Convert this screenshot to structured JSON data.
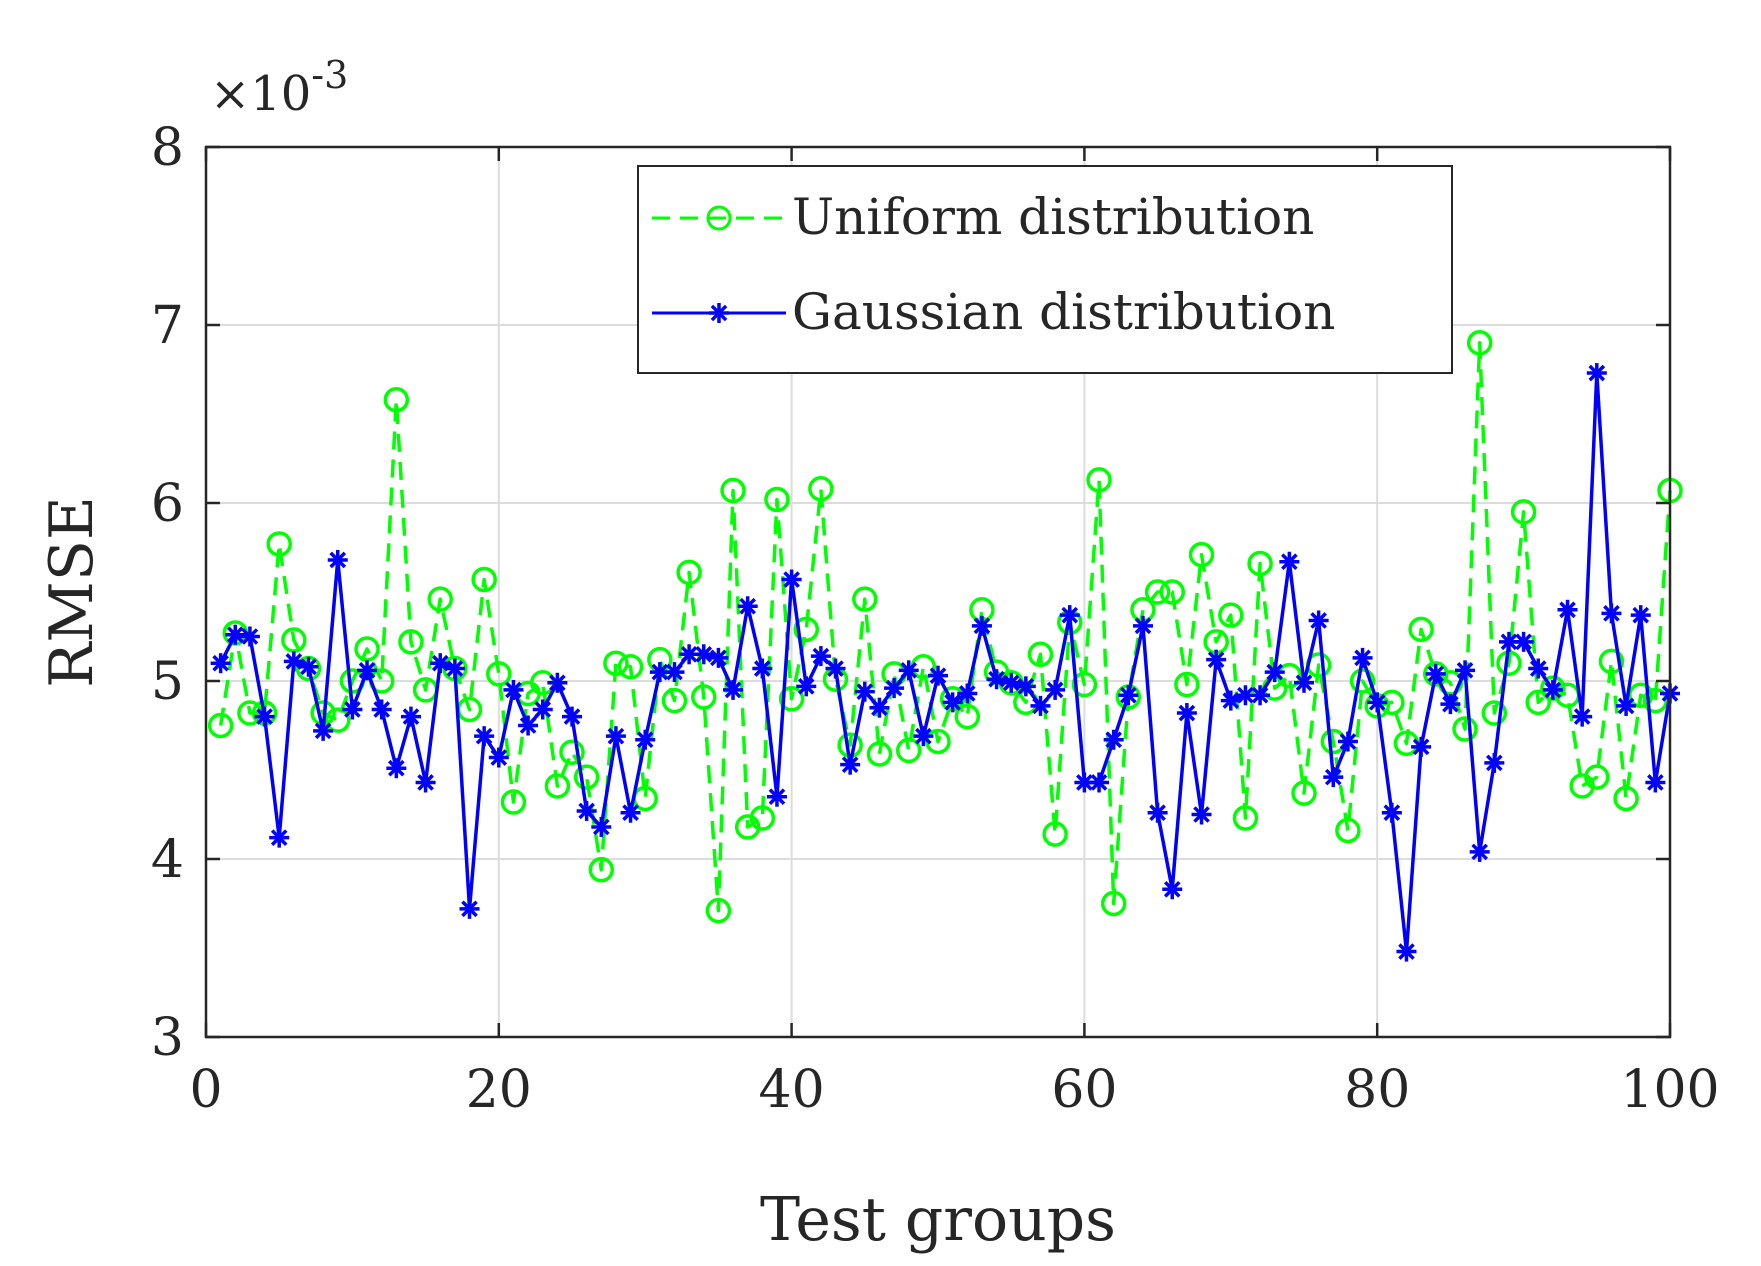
{
  "chart_data": {
    "type": "line",
    "title": "",
    "xlabel": "Test groups",
    "ylabel": "RMSE",
    "xlim": [
      0,
      100
    ],
    "ylim": [
      3,
      8
    ],
    "x_ticks": [
      0,
      20,
      40,
      60,
      80,
      100
    ],
    "y_ticks": [
      3,
      4,
      5,
      6,
      7,
      8
    ],
    "y_exponent_label": "×10",
    "y_exponent_power": "-3",
    "grid": true,
    "legend_position": "top-right",
    "x": [
      1,
      2,
      3,
      4,
      5,
      6,
      7,
      8,
      9,
      10,
      11,
      12,
      13,
      14,
      15,
      16,
      17,
      18,
      19,
      20,
      21,
      22,
      23,
      24,
      25,
      26,
      27,
      28,
      29,
      30,
      31,
      32,
      33,
      34,
      35,
      36,
      37,
      38,
      39,
      40,
      41,
      42,
      43,
      44,
      45,
      46,
      47,
      48,
      49,
      50,
      51,
      52,
      53,
      54,
      55,
      56,
      57,
      58,
      59,
      60,
      61,
      62,
      63,
      64,
      65,
      66,
      67,
      68,
      69,
      70,
      71,
      72,
      73,
      74,
      75,
      76,
      77,
      78,
      79,
      80,
      81,
      82,
      83,
      84,
      85,
      86,
      87,
      88,
      89,
      90,
      91,
      92,
      93,
      94,
      95,
      96,
      97,
      98,
      99,
      100
    ],
    "series": [
      {
        "name": "Uniform distribution",
        "color": "#00ff00",
        "line_style": "dashed",
        "marker": "circle",
        "values": [
          4.75,
          5.27,
          4.82,
          4.82,
          5.77,
          5.23,
          5.07,
          4.82,
          4.78,
          5.0,
          5.18,
          5.0,
          6.58,
          5.22,
          4.95,
          5.46,
          5.07,
          4.84,
          5.57,
          5.04,
          4.32,
          4.93,
          4.99,
          4.41,
          4.6,
          4.46,
          3.94,
          5.1,
          5.08,
          4.34,
          5.12,
          4.89,
          5.61,
          4.91,
          3.71,
          6.07,
          4.18,
          4.23,
          6.02,
          4.9,
          5.29,
          6.08,
          5.01,
          4.64,
          5.46,
          4.59,
          5.04,
          4.61,
          5.08,
          4.66,
          4.9,
          4.8,
          5.4,
          5.05,
          4.99,
          4.88,
          5.15,
          4.14,
          5.33,
          4.98,
          6.13,
          3.75,
          4.91,
          5.4,
          5.5,
          5.5,
          4.98,
          5.71,
          5.22,
          5.37,
          4.23,
          5.66,
          4.96,
          5.03,
          4.37,
          5.09,
          4.66,
          4.16,
          5.0,
          4.86,
          4.88,
          4.65,
          5.29,
          5.04,
          4.99,
          4.73,
          6.9,
          4.82,
          5.1,
          5.95,
          4.88,
          4.96,
          4.92,
          4.41,
          4.46,
          5.11,
          4.34,
          4.92,
          4.89,
          6.07
        ]
      },
      {
        "name": "Gaussian distribution",
        "color": "#0000ff",
        "line_style": "solid",
        "marker": "asterisk",
        "values": [
          5.1,
          5.26,
          5.25,
          4.8,
          4.12,
          5.11,
          5.08,
          4.72,
          5.68,
          4.84,
          5.06,
          4.84,
          4.51,
          4.8,
          4.43,
          5.1,
          5.07,
          3.72,
          4.69,
          4.57,
          4.95,
          4.75,
          4.84,
          4.99,
          4.8,
          4.27,
          4.18,
          4.69,
          4.26,
          4.67,
          5.05,
          5.05,
          5.15,
          5.15,
          5.13,
          4.95,
          5.42,
          5.07,
          4.35,
          5.57,
          4.97,
          5.14,
          5.07,
          4.53,
          4.94,
          4.85,
          4.96,
          5.06,
          4.69,
          5.03,
          4.88,
          4.93,
          5.31,
          5.01,
          4.99,
          4.97,
          4.86,
          4.95,
          5.37,
          4.43,
          4.43,
          4.67,
          4.92,
          5.31,
          4.26,
          3.83,
          4.82,
          4.25,
          5.12,
          4.89,
          4.92,
          4.92,
          5.05,
          5.67,
          4.99,
          5.34,
          4.46,
          4.66,
          5.13,
          4.88,
          4.26,
          3.48,
          4.63,
          5.04,
          4.87,
          5.06,
          4.04,
          4.54,
          5.22,
          5.22,
          5.07,
          4.95,
          5.4,
          4.8,
          6.73,
          5.38,
          4.86,
          5.37,
          4.43,
          4.93
        ]
      }
    ]
  }
}
